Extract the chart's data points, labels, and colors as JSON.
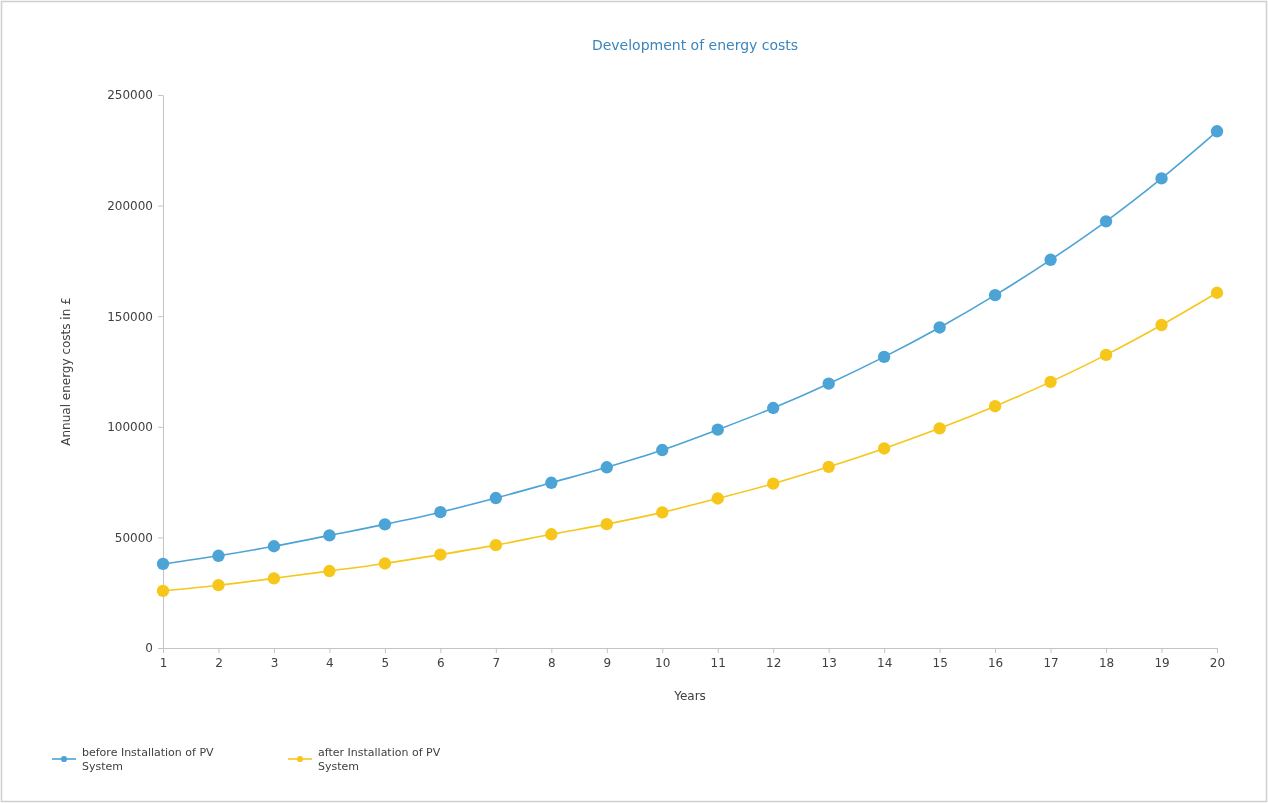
{
  "chart_data": {
    "type": "line",
    "title": "Development of energy costs",
    "xlabel": "Years",
    "ylabel": "Annual energy costs in £",
    "x": [
      1,
      2,
      3,
      4,
      5,
      6,
      7,
      8,
      9,
      10,
      11,
      12,
      13,
      14,
      15,
      16,
      17,
      18,
      19,
      20
    ],
    "series": [
      {
        "name": "before Installation of PV System",
        "color": "#4ba3d6",
        "values": [
          38000,
          41700,
          46000,
          50900,
          55900,
          61400,
          67800,
          74700,
          81700,
          89500,
          98700,
          108500,
          119500,
          131600,
          144900,
          159500,
          175500,
          192900,
          212300,
          233600
        ]
      },
      {
        "name": "after Installation of PV System",
        "color": "#f6c71a",
        "values": [
          25800,
          28400,
          31500,
          34800,
          38200,
          42200,
          46500,
          51400,
          56000,
          61300,
          67600,
          74300,
          81900,
          90200,
          99300,
          109300,
          120300,
          132500,
          146000,
          160600
        ]
      }
    ],
    "xlim": [
      1,
      20
    ],
    "xticks": [
      1,
      2,
      3,
      4,
      5,
      6,
      7,
      8,
      9,
      10,
      11,
      12,
      13,
      14,
      15,
      16,
      17,
      18,
      19,
      20
    ],
    "ylim": [
      0,
      250000
    ],
    "yticks": [
      0,
      50000,
      100000,
      150000,
      200000,
      250000
    ],
    "legend": "bottom left",
    "marker": "circle",
    "line_style": "solid"
  }
}
